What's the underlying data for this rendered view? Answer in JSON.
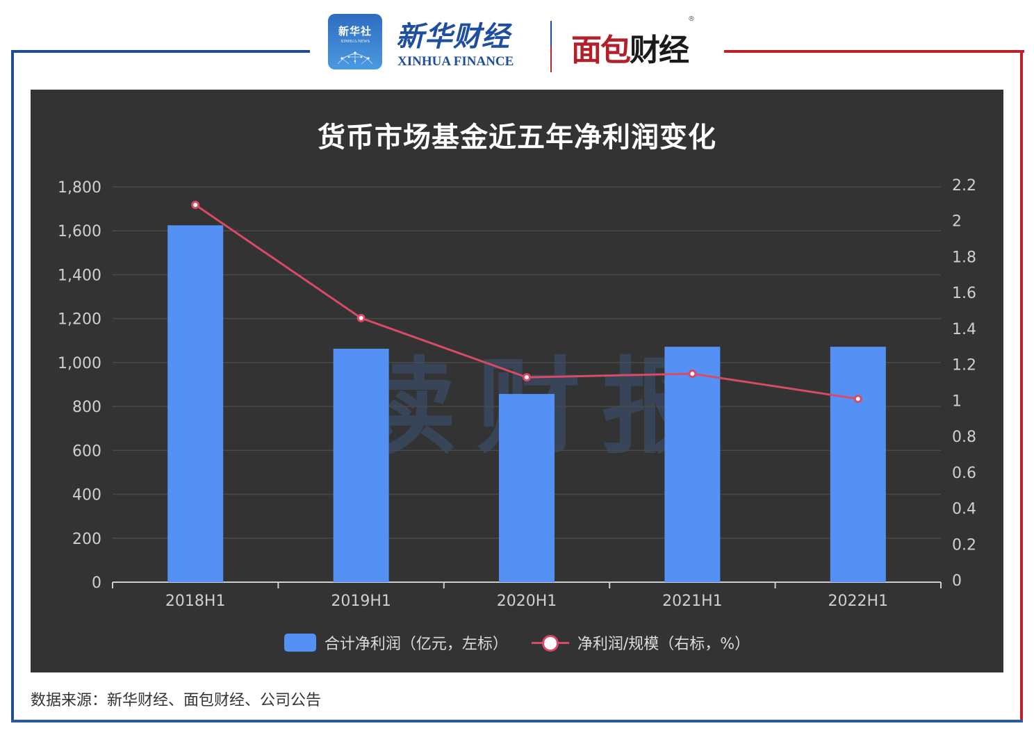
{
  "header": {
    "xinhua_badge_cn": "新华社",
    "xinhua_badge_en": "XINHUA NEWS",
    "xinhua_finance_cn": "新华财经",
    "xinhua_finance_en": "XINHUA FINANCE",
    "mianbao_logo_red": "面包",
    "mianbao_logo_dark": "财经",
    "registered_mark": "®"
  },
  "watermark": "读财报",
  "footer": {
    "source": "数据来源：新华财经、面包财经、公司公告"
  },
  "colors": {
    "bar": "#5591f5",
    "line": "#d84a65",
    "panel_bg": "#333333",
    "frame_blue": "#1f4e8c",
    "frame_red": "#c0202a"
  },
  "chart_data": {
    "type": "bar",
    "title": "货币市场基金近五年净利润变化",
    "categories": [
      "2018H1",
      "2019H1",
      "2020H1",
      "2021H1",
      "2022H1"
    ],
    "series": [
      {
        "name": "合计净利润（亿元，左标）",
        "type": "bar",
        "axis": "left",
        "values": [
          1625,
          1063,
          857,
          1072,
          1072
        ]
      },
      {
        "name": "净利润/规模（右标，%）",
        "type": "line",
        "axis": "right",
        "values": [
          2.1,
          1.47,
          1.14,
          1.16,
          1.02
        ]
      }
    ],
    "left_axis": {
      "ticks": [
        "0",
        "200",
        "400",
        "600",
        "800",
        "1,000",
        "1,200",
        "1,400",
        "1,600",
        "1,800"
      ],
      "ylim": [
        0,
        1800
      ]
    },
    "right_axis": {
      "ticks": [
        "0",
        "0.2",
        "0.4",
        "0.6",
        "0.8",
        "1",
        "1.2",
        "1.4",
        "1.6",
        "1.8",
        "2",
        "2.2"
      ],
      "ylim": [
        0,
        2.2
      ]
    },
    "xlabel": "",
    "ylabel": "",
    "grid": true,
    "legend_position": "bottom"
  }
}
